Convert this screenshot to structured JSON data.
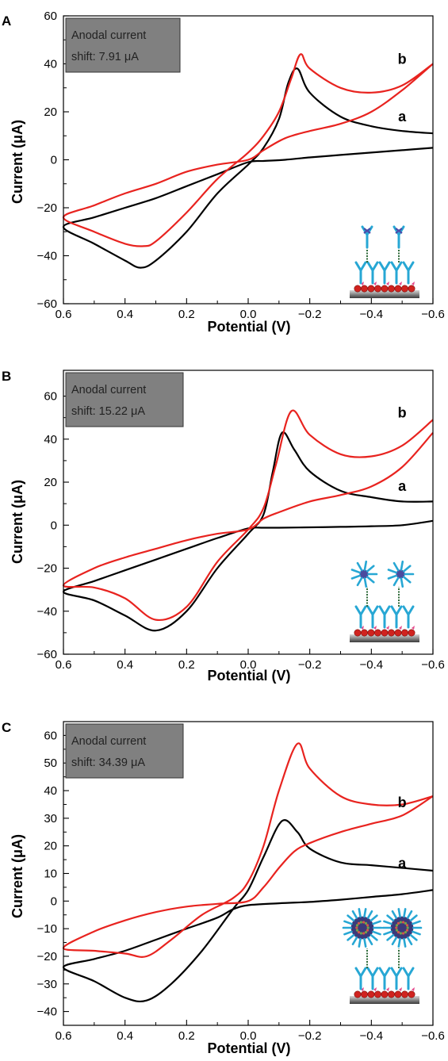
{
  "chart_data": [
    {
      "type": "line",
      "panel": "A",
      "xlabel": "Potential (V)",
      "ylabel": "Current (μA)",
      "xlim": [
        0.6,
        -0.6
      ],
      "ylim": [
        -60,
        60
      ],
      "xticks": [
        0.6,
        0.4,
        0.2,
        0.0,
        -0.2,
        -0.4,
        -0.6
      ],
      "xtick_labels": [
        "0.6",
        "0.4",
        "0.2",
        "0.0",
        "−0.2",
        "−0.4",
        "−0.6"
      ],
      "yticks": [
        -60,
        -40,
        -20,
        0,
        20,
        40,
        60
      ],
      "ytick_labels": [
        "−60",
        "−40",
        "−20",
        "0",
        "20",
        "40",
        "60"
      ],
      "annotation": {
        "line1": "Anodal current",
        "line2": "shift: 7.91 μA"
      },
      "series": [
        {
          "name": "a",
          "color": "#000000",
          "x": [
            -0.6,
            -0.5,
            -0.4,
            -0.3,
            -0.2,
            -0.12,
            -0.05,
            0.0,
            0.1,
            0.2,
            0.3,
            0.4,
            0.5,
            0.6,
            0.5,
            0.4,
            0.35,
            0.3,
            0.2,
            0.1,
            0.0,
            -0.05,
            -0.1,
            -0.13,
            -0.16,
            -0.2,
            -0.3,
            -0.4,
            -0.5,
            -0.6
          ],
          "y": [
            5,
            4,
            3,
            2,
            1,
            0,
            -0.5,
            -1,
            -6,
            -11,
            -16,
            -20,
            -24,
            -28,
            -35,
            -42,
            -45,
            -42,
            -30,
            -14,
            -2,
            5,
            17,
            32,
            38,
            28,
            18,
            14,
            12,
            11
          ]
        },
        {
          "name": "b",
          "color": "#e8231f",
          "x": [
            -0.6,
            -0.5,
            -0.4,
            -0.3,
            -0.2,
            -0.12,
            -0.05,
            0.0,
            0.1,
            0.2,
            0.3,
            0.4,
            0.5,
            0.6,
            0.5,
            0.4,
            0.34,
            0.3,
            0.2,
            0.1,
            0.0,
            -0.05,
            -0.1,
            -0.14,
            -0.17,
            -0.2,
            -0.3,
            -0.4,
            -0.5,
            -0.6
          ],
          "y": [
            40,
            29,
            20,
            15,
            12,
            9,
            4,
            0,
            -2,
            -5,
            -10,
            -14,
            -19,
            -24,
            -30,
            -35,
            -36,
            -34,
            -22,
            -8,
            3,
            10,
            20,
            34,
            44,
            38,
            30,
            28,
            31,
            40
          ]
        }
      ],
      "curve_labels": [
        {
          "text": "b",
          "x": -0.5,
          "y": 40
        },
        {
          "text": "a",
          "x": -0.5,
          "y": 16
        }
      ],
      "grid": false
    },
    {
      "type": "line",
      "panel": "B",
      "xlabel": "Potential (V)",
      "ylabel": "Current (μA)",
      "xlim": [
        0.6,
        -0.6
      ],
      "ylim": [
        -60,
        72
      ],
      "xticks": [
        0.6,
        0.4,
        0.2,
        0.0,
        -0.2,
        -0.4,
        -0.6
      ],
      "xtick_labels": [
        "0.6",
        "0.4",
        "0.2",
        "0.0",
        "−0.2",
        "−0.4",
        "−0.6"
      ],
      "yticks": [
        -60,
        -40,
        -20,
        0,
        20,
        40,
        60
      ],
      "ytick_labels": [
        "−60",
        "−40",
        "−20",
        "0",
        "20",
        "40",
        "60"
      ],
      "annotation": {
        "line1": "Anodal current",
        "line2": "shift: 15.22 μA"
      },
      "series": [
        {
          "name": "a",
          "color": "#000000",
          "x": [
            -0.6,
            -0.5,
            -0.4,
            -0.3,
            -0.2,
            -0.1,
            -0.05,
            0.0,
            0.1,
            0.2,
            0.3,
            0.4,
            0.5,
            0.6,
            0.5,
            0.4,
            0.3,
            0.2,
            0.1,
            0.0,
            -0.05,
            -0.08,
            -0.11,
            -0.15,
            -0.2,
            -0.3,
            -0.4,
            -0.5,
            -0.6
          ],
          "y": [
            2,
            0,
            -0.5,
            -0.8,
            -1,
            -1.2,
            -1.2,
            -1.5,
            -6,
            -11,
            -16,
            -21,
            -26,
            -31,
            -35,
            -42,
            -49,
            -40,
            -20,
            -4,
            5,
            25,
            43,
            35,
            25,
            16,
            13,
            11,
            11
          ]
        },
        {
          "name": "b",
          "color": "#e8231f",
          "x": [
            -0.6,
            -0.5,
            -0.4,
            -0.3,
            -0.2,
            -0.1,
            -0.05,
            0.0,
            0.1,
            0.2,
            0.3,
            0.4,
            0.5,
            0.6,
            0.5,
            0.4,
            0.3,
            0.2,
            0.1,
            0.0,
            -0.05,
            -0.09,
            -0.14,
            -0.2,
            -0.3,
            -0.4,
            -0.5,
            -0.6
          ],
          "y": [
            43,
            27,
            18,
            14,
            11,
            6,
            3,
            -2,
            -4,
            -7,
            -11,
            -15,
            -20,
            -28,
            -29,
            -34,
            -44,
            -38,
            -17,
            -2,
            8,
            28,
            53,
            42,
            33,
            32,
            37,
            49
          ]
        }
      ],
      "curve_labels": [
        {
          "text": "b",
          "x": -0.5,
          "y": 50
        },
        {
          "text": "a",
          "x": -0.5,
          "y": 16
        }
      ],
      "grid": false
    },
    {
      "type": "line",
      "panel": "C",
      "xlabel": "Potential (V)",
      "ylabel": "Current (μA)",
      "xlim": [
        0.6,
        -0.6
      ],
      "ylim": [
        -45,
        65
      ],
      "xticks": [
        0.6,
        0.4,
        0.2,
        0.0,
        -0.2,
        -0.4,
        -0.6
      ],
      "xtick_labels": [
        "0.6",
        "0.4",
        "0.2",
        "0.0",
        "−0.2",
        "−0.4",
        "−0.6"
      ],
      "yticks": [
        -40,
        -30,
        -20,
        -10,
        0,
        10,
        20,
        30,
        40,
        50,
        60
      ],
      "ytick_labels": [
        "−40",
        "−30",
        "−20",
        "−10",
        "0",
        "10",
        "20",
        "30",
        "40",
        "50",
        "60"
      ],
      "annotation": {
        "line1": "Anodal current",
        "line2": "shift: 34.39 μA"
      },
      "series": [
        {
          "name": "a",
          "color": "#000000",
          "x": [
            -0.6,
            -0.5,
            -0.4,
            -0.3,
            -0.2,
            -0.1,
            0.0,
            0.05,
            0.1,
            0.2,
            0.3,
            0.4,
            0.5,
            0.6,
            0.5,
            0.4,
            0.33,
            0.25,
            0.15,
            0.05,
            0.0,
            -0.05,
            -0.11,
            -0.16,
            -0.2,
            -0.3,
            -0.4,
            -0.5,
            -0.6
          ],
          "y": [
            4,
            2.5,
            1.5,
            0.5,
            -0.3,
            -0.8,
            -1.5,
            -3,
            -6,
            -10,
            -14,
            -18,
            -21,
            -24,
            -29,
            -35,
            -36,
            -30,
            -18,
            -3,
            4,
            16,
            29,
            25,
            19,
            14,
            13,
            12,
            11
          ]
        },
        {
          "name": "b",
          "color": "#e8231f",
          "x": [
            -0.6,
            -0.5,
            -0.4,
            -0.3,
            -0.2,
            -0.15,
            -0.1,
            -0.05,
            0.0,
            0.1,
            0.2,
            0.3,
            0.4,
            0.5,
            0.6,
            0.5,
            0.4,
            0.33,
            0.25,
            0.15,
            0.05,
            0.0,
            -0.05,
            -0.1,
            -0.16,
            -0.2,
            -0.3,
            -0.4,
            -0.5,
            -0.6
          ],
          "y": [
            38,
            31,
            28,
            25,
            21,
            18,
            12,
            5,
            0,
            -1,
            -2,
            -4,
            -7,
            -11,
            -17,
            -18,
            -19,
            -20,
            -14,
            -5,
            1,
            7,
            20,
            40,
            57,
            48,
            38,
            35,
            35,
            38
          ]
        }
      ],
      "curve_labels": [
        {
          "text": "b",
          "x": -0.5,
          "y": 34
        },
        {
          "text": "a",
          "x": -0.5,
          "y": 12
        }
      ],
      "grid": false
    }
  ]
}
